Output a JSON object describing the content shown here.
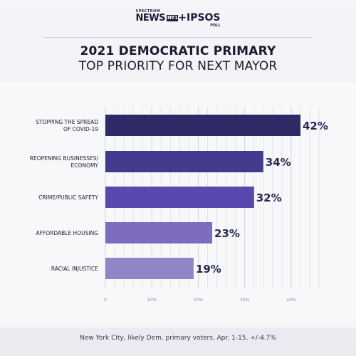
{
  "logo": {
    "spectrum": "SPECTRUM",
    "news": "NEWS",
    "ny": "NY1",
    "ipsos": "+IPSOS",
    "poll": "POLL"
  },
  "title": "2021 DEMOCRATIC PRIMARY",
  "subtitle": "TOP PRIORITY FOR NEXT MAYOR",
  "footer": "New York City, likely Dem. primary voters, Apr. 1-15, +/-4.7%",
  "chart_data": {
    "type": "bar",
    "orientation": "horizontal",
    "categories": [
      [
        "STOPPING THE SPREAD",
        "OF COVID-19"
      ],
      [
        "REOPENING BUSINESSES/",
        "ECONOMY"
      ],
      [
        "CRIME/PUBLIC SAFETY"
      ],
      [
        "AFFORDABLE HOUSING"
      ],
      [
        "RACIAL INJUSTICE"
      ]
    ],
    "values": [
      42,
      34,
      32,
      23,
      19
    ],
    "value_labels": [
      "42%",
      "34%",
      "32%",
      "23%",
      "19%"
    ],
    "colors": [
      "#2f2a66",
      "#433a8e",
      "#5b48ae",
      "#7e6dbf",
      "#9185c6"
    ],
    "x_ticks": [
      0,
      10,
      20,
      30,
      40
    ],
    "x_tick_labels": [
      "0",
      "10%",
      "20%",
      "30%",
      "40%"
    ],
    "xlim": [
      0,
      45
    ],
    "grid": true
  }
}
